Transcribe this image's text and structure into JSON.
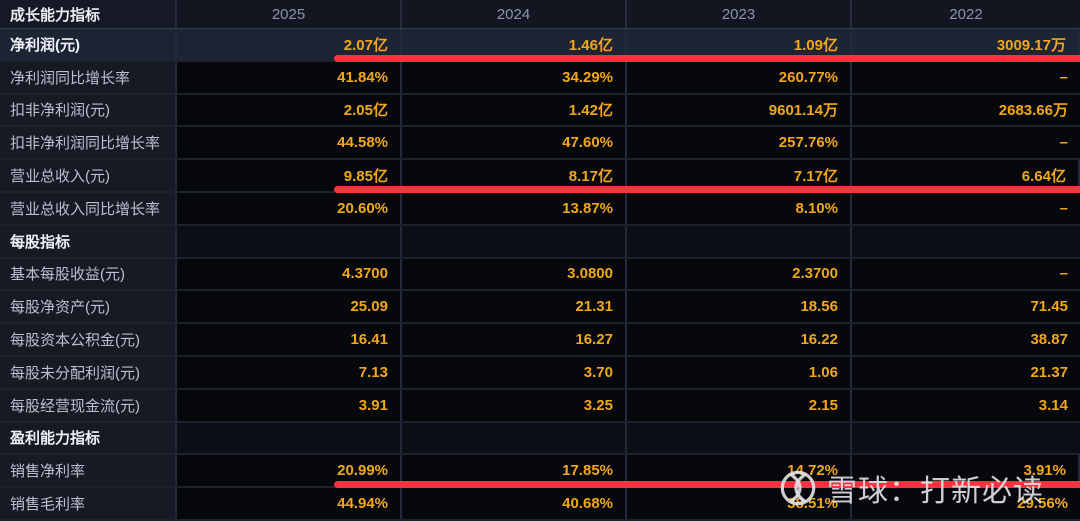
{
  "header": {
    "label": "成长能力指标",
    "years": [
      "2025",
      "2024",
      "2023",
      "2022"
    ]
  },
  "rows": [
    {
      "label": "净利润(元)",
      "values": [
        "2.07亿",
        "1.46亿",
        "1.09亿",
        "3009.17万"
      ],
      "highlight": true,
      "redline": true
    },
    {
      "label": "净利润同比增长率",
      "values": [
        "41.84%",
        "34.29%",
        "260.77%",
        "–"
      ]
    },
    {
      "label": "扣非净利润(元)",
      "values": [
        "2.05亿",
        "1.42亿",
        "9601.14万",
        "2683.66万"
      ]
    },
    {
      "label": "扣非净利润同比增长率",
      "values": [
        "44.58%",
        "47.60%",
        "257.76%",
        "–"
      ]
    },
    {
      "label": "营业总收入(元)",
      "values": [
        "9.85亿",
        "8.17亿",
        "7.17亿",
        "6.64亿"
      ],
      "redline": true
    },
    {
      "label": "营业总收入同比增长率",
      "values": [
        "20.60%",
        "13.87%",
        "8.10%",
        "–"
      ]
    },
    {
      "label": "每股指标",
      "section": true
    },
    {
      "label": "基本每股收益(元)",
      "values": [
        "4.3700",
        "3.0800",
        "2.3700",
        "–"
      ]
    },
    {
      "label": "每股净资产(元)",
      "values": [
        "25.09",
        "21.31",
        "18.56",
        "71.45"
      ]
    },
    {
      "label": "每股资本公积金(元)",
      "values": [
        "16.41",
        "16.27",
        "16.22",
        "38.87"
      ]
    },
    {
      "label": "每股未分配利润(元)",
      "values": [
        "7.13",
        "3.70",
        "1.06",
        "21.37"
      ]
    },
    {
      "label": "每股经营现金流(元)",
      "values": [
        "3.91",
        "3.25",
        "2.15",
        "3.14"
      ]
    },
    {
      "label": "盈利能力指标",
      "section": true
    },
    {
      "label": "销售净利率",
      "values": [
        "20.99%",
        "17.85%",
        "14.72%",
        "3.91%"
      ],
      "redline": true
    },
    {
      "label": "销售毛利率",
      "values": [
        "44.94%",
        "40.68%",
        "38.51%",
        "29.56%"
      ]
    }
  ],
  "watermark": {
    "text": "雪球：打新必读",
    "logo": "xueqiu-logo"
  },
  "colors": {
    "value_orange": "#f1a71c",
    "highlight_row": "#1d2434",
    "red_underline": "#f8333f",
    "background": "#06080c"
  }
}
